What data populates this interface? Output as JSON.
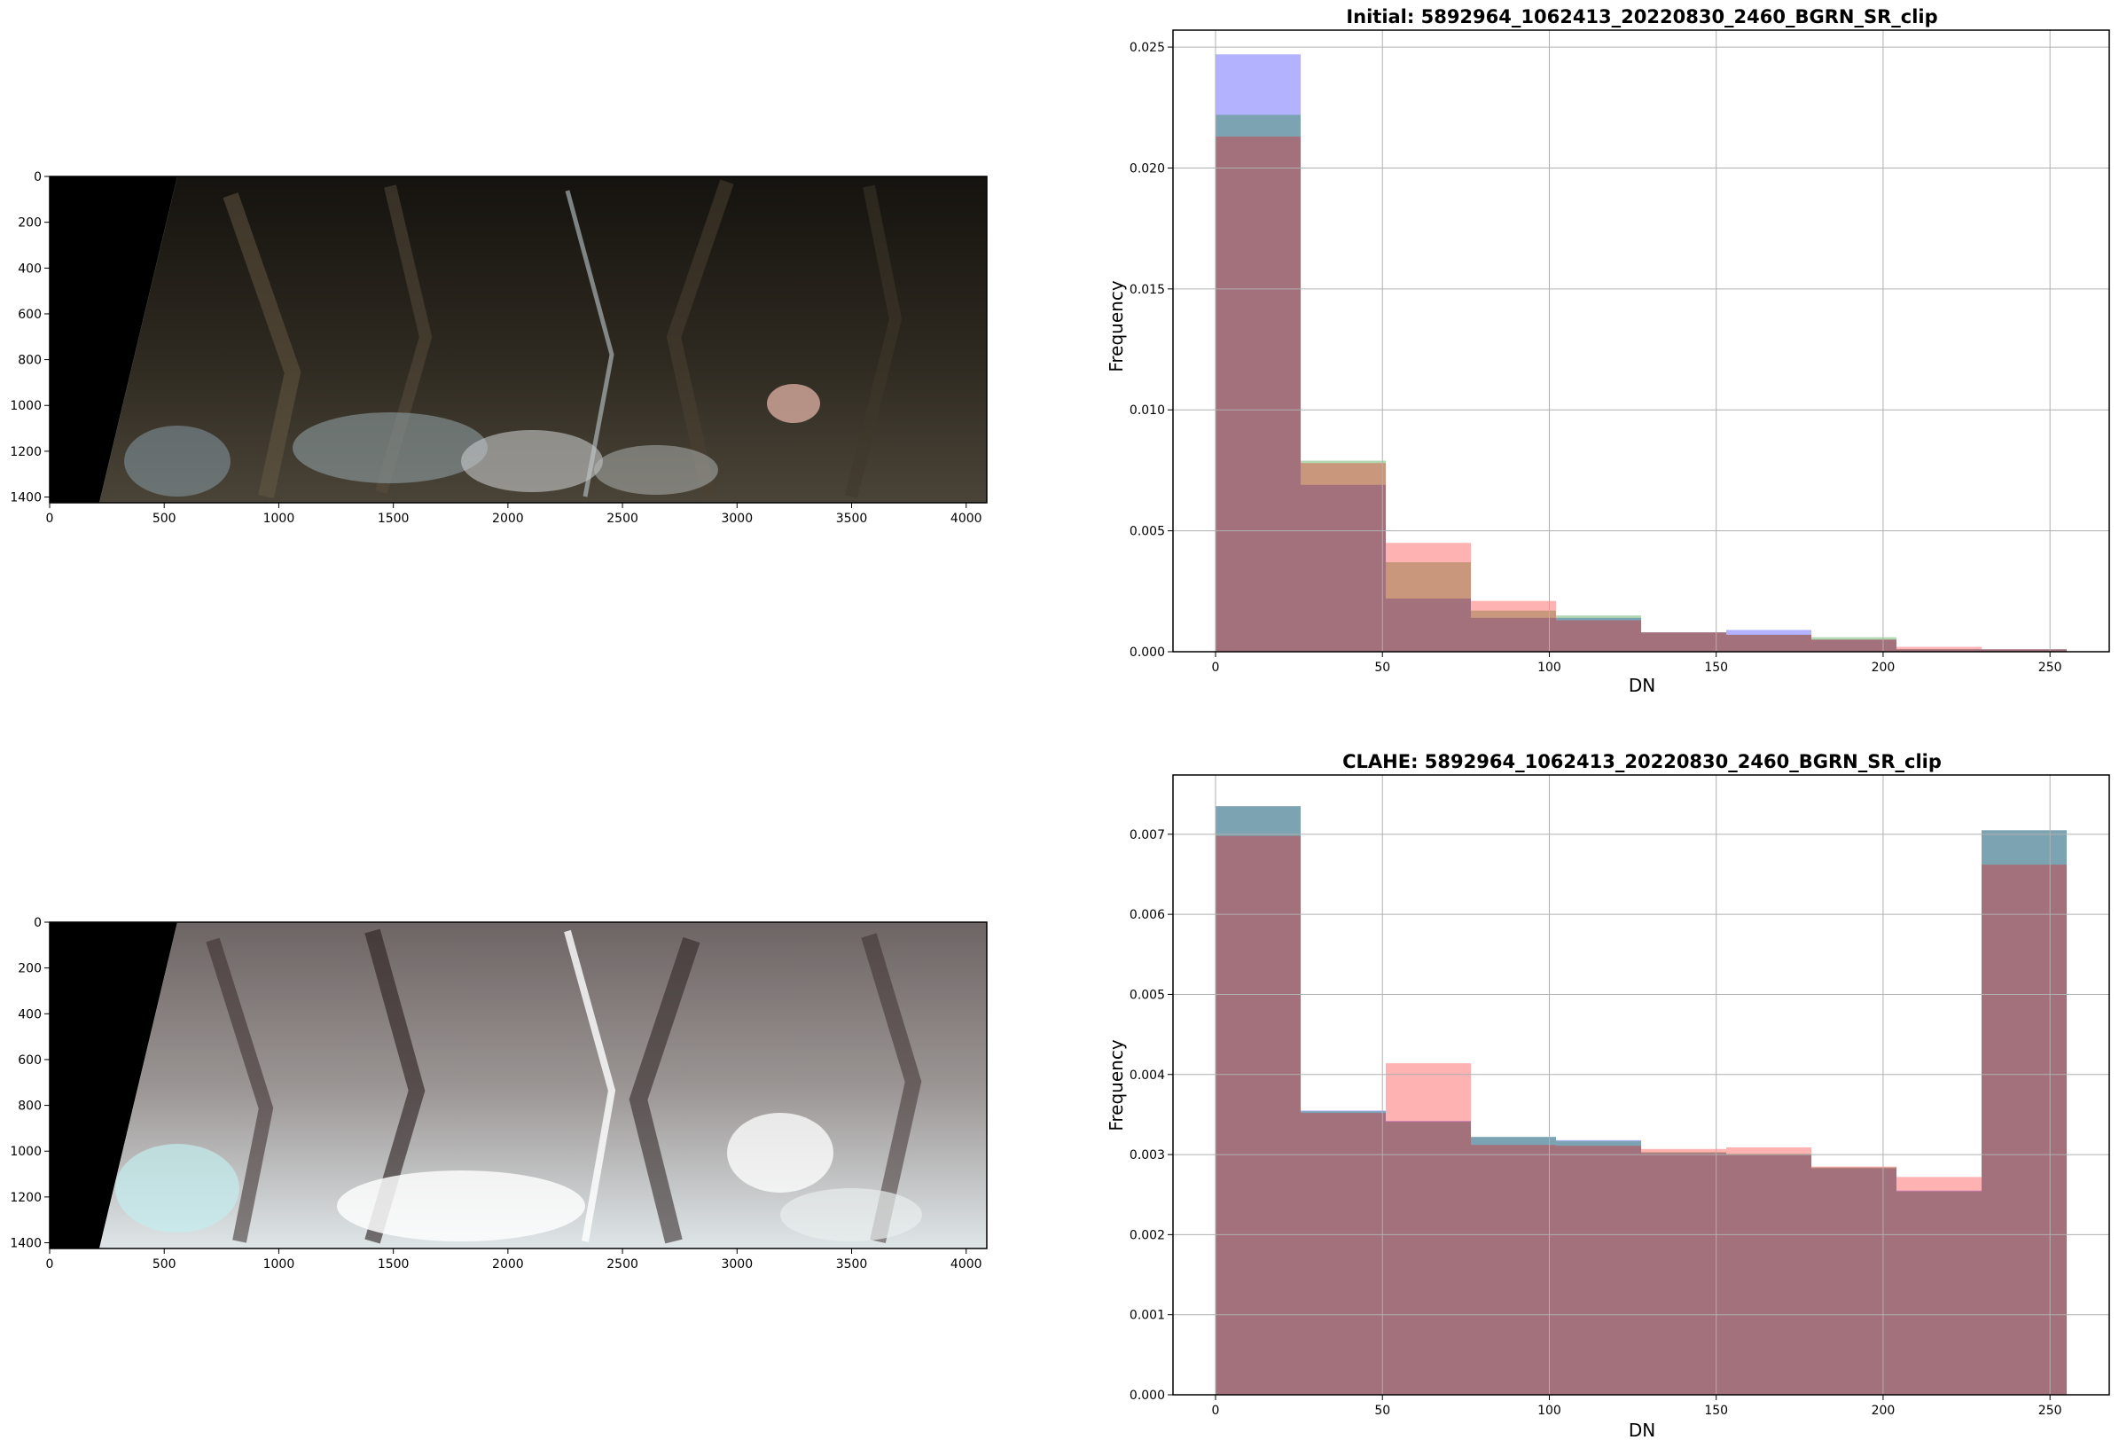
{
  "images": [
    {
      "id": "initial",
      "xticks": [
        0,
        500,
        1000,
        1500,
        2000,
        2500,
        3000,
        3500,
        4000
      ],
      "yticks": [
        0,
        200,
        400,
        600,
        800,
        1000,
        1200,
        1400
      ],
      "xlim": [
        0,
        4090
      ],
      "ylim": [
        1425,
        0
      ],
      "colors": {
        "bg": "#0b0b08",
        "mid": "#3b3426",
        "light": "#6e6352",
        "snow": "#dde2e4"
      }
    },
    {
      "id": "clahe",
      "xticks": [
        0,
        500,
        1000,
        1500,
        2000,
        2500,
        3000,
        3500,
        4000
      ],
      "yticks": [
        0,
        200,
        400,
        600,
        800,
        1000,
        1200,
        1400
      ],
      "xlim": [
        0,
        4090
      ],
      "ylim": [
        1425,
        0
      ],
      "colors": {
        "bg": "#241a1a",
        "mid": "#8d8786",
        "light": "#d5d2d1",
        "snow": "#f6fafb"
      }
    }
  ],
  "chart_data": [
    {
      "type": "bar",
      "title": "Initial: 5892964_1062413_20220830_2460_BGRN_SR_clip",
      "xlabel": "DN",
      "ylabel": "Frequency",
      "xlim": [
        -12.75,
        267.75
      ],
      "ylim": [
        0,
        0.0257
      ],
      "xticks": [
        0,
        50,
        100,
        150,
        200,
        250
      ],
      "yticks": [
        "0.000",
        "0.005",
        "0.010",
        "0.015",
        "0.020",
        "0.025"
      ],
      "grid": true,
      "bin_edges": [
        0,
        25.5,
        51,
        76.5,
        102,
        127.5,
        153,
        178.5,
        204,
        229.5,
        255
      ],
      "series": [
        {
          "color": "#0000ff",
          "alpha": 0.3,
          "values": [
            0.0247,
            0.0069,
            0.0022,
            0.0014,
            0.0014,
            0.0008,
            0.0009,
            0.0005,
            0.0001,
            0.0001
          ]
        },
        {
          "color": "#008000",
          "alpha": 0.3,
          "values": [
            0.0222,
            0.0079,
            0.0037,
            0.0017,
            0.0015,
            0.0008,
            0.0007,
            0.0006,
            0.0001,
            0.0001
          ]
        },
        {
          "color": "#ff0000",
          "alpha": 0.3,
          "values": [
            0.0213,
            0.0078,
            0.0045,
            0.0021,
            0.0013,
            0.0008,
            0.0007,
            0.0005,
            0.0002,
            0.0001
          ]
        }
      ]
    },
    {
      "type": "bar",
      "title": "CLAHE: 5892964_1062413_20220830_2460_BGRN_SR_clip",
      "xlabel": "DN",
      "ylabel": "Frequency",
      "xlim": [
        -12.75,
        267.75
      ],
      "ylim": [
        0,
        0.00774
      ],
      "xticks": [
        0,
        50,
        100,
        150,
        200,
        250
      ],
      "yticks": [
        "0.000",
        "0.001",
        "0.002",
        "0.003",
        "0.004",
        "0.005",
        "0.006",
        "0.007"
      ],
      "grid": true,
      "bin_edges": [
        0,
        25.5,
        51,
        76.5,
        102,
        127.5,
        153,
        178.5,
        204,
        229.5,
        255
      ],
      "series": [
        {
          "color": "#0000ff",
          "alpha": 0.3,
          "values": [
            0.00735,
            0.00355,
            0.00342,
            0.00322,
            0.00318,
            0.00302,
            0.003,
            0.00283,
            0.00255,
            0.00705
          ]
        },
        {
          "color": "#008000",
          "alpha": 0.3,
          "values": [
            0.00735,
            0.00354,
            0.00341,
            0.00322,
            0.00317,
            0.00303,
            0.00301,
            0.00284,
            0.00254,
            0.00705
          ]
        },
        {
          "color": "#ff0000",
          "alpha": 0.3,
          "values": [
            0.00698,
            0.00352,
            0.00414,
            0.00312,
            0.00311,
            0.00307,
            0.00309,
            0.00285,
            0.00272,
            0.00662
          ]
        }
      ]
    }
  ]
}
